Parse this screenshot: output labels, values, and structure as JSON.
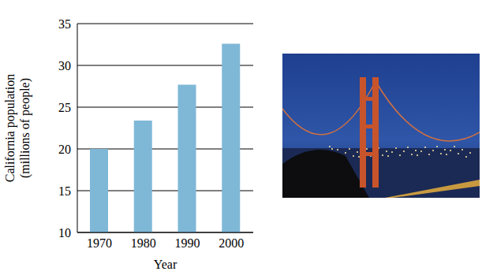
{
  "chart_data": {
    "type": "bar",
    "categories": [
      "1970",
      "1980",
      "1990",
      "2000"
    ],
    "values": [
      20.0,
      23.4,
      27.7,
      32.6
    ],
    "color": "#7fb8d7",
    "ylim": [
      10,
      35
    ],
    "yticks": [
      10,
      15,
      20,
      25,
      30,
      35
    ],
    "grid": true,
    "xlabel": "Year",
    "ylabel": "California population (millions of people)"
  }
}
